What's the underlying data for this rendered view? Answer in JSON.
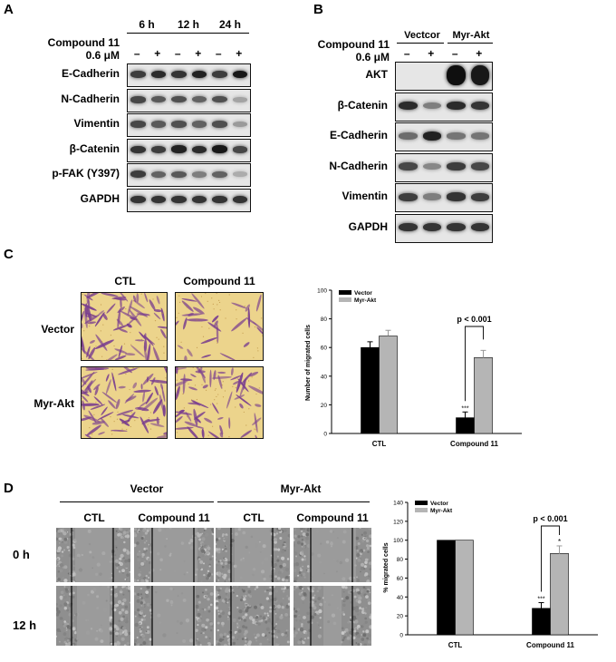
{
  "panel_a": {
    "letter": "A",
    "timepoints": [
      "6 h",
      "12 h",
      "24 h"
    ],
    "treatment_label": "Compound 11",
    "dose_label": "0.6 μM",
    "lane_signs": [
      "–",
      "+",
      "–",
      "+",
      "–",
      "+"
    ],
    "proteins": [
      {
        "name": "E-Cadherin",
        "intensity": [
          0.75,
          0.85,
          0.8,
          0.9,
          0.75,
          0.95
        ]
      },
      {
        "name": "N-Cadherin",
        "intensity": [
          0.7,
          0.6,
          0.65,
          0.55,
          0.65,
          0.2
        ]
      },
      {
        "name": "Vimentin",
        "intensity": [
          0.7,
          0.6,
          0.65,
          0.55,
          0.65,
          0.25
        ]
      },
      {
        "name": "β-Catenin",
        "intensity": [
          0.8,
          0.75,
          0.9,
          0.85,
          0.95,
          0.7
        ]
      },
      {
        "name": "p-FAK (Y397)",
        "intensity": [
          0.75,
          0.55,
          0.6,
          0.4,
          0.55,
          0.15
        ]
      },
      {
        "name": "GAPDH",
        "intensity": [
          0.8,
          0.8,
          0.8,
          0.8,
          0.8,
          0.8
        ]
      }
    ]
  },
  "panel_b": {
    "letter": "B",
    "groups": [
      "Vectcor",
      "Myr-Akt"
    ],
    "treatment_label": "Compound 11",
    "dose_label": "0.6 μM",
    "lane_signs": [
      "–",
      "+",
      "–",
      "+"
    ],
    "proteins": [
      {
        "name": "AKT",
        "intensity": [
          0.0,
          0.0,
          1.0,
          0.95
        ]
      },
      {
        "name": "β-Catenin",
        "intensity": [
          0.85,
          0.4,
          0.85,
          0.8
        ]
      },
      {
        "name": "E-Cadherin",
        "intensity": [
          0.5,
          0.9,
          0.45,
          0.45
        ]
      },
      {
        "name": "N-Cadherin",
        "intensity": [
          0.7,
          0.35,
          0.75,
          0.7
        ]
      },
      {
        "name": "Vimentin",
        "intensity": [
          0.75,
          0.4,
          0.8,
          0.75
        ]
      },
      {
        "name": "GAPDH",
        "intensity": [
          0.8,
          0.8,
          0.8,
          0.8
        ]
      }
    ]
  },
  "panel_c": {
    "letter": "C",
    "columns": [
      "CTL",
      "Compound 11"
    ],
    "rows": [
      "Vector",
      "Myr-Akt"
    ],
    "micro_colors": {
      "bg": "#ecd48c",
      "stain": "#7a3f8f"
    }
  },
  "panel_d": {
    "letter": "D",
    "groups": [
      "Vector",
      "Myr-Akt"
    ],
    "columns": [
      "CTL",
      "Compound 11",
      "CTL",
      "Compound 11"
    ],
    "rows": [
      "0 h",
      "12 h"
    ]
  },
  "chart_data": [
    {
      "type": "bar",
      "categories": [
        "CTL",
        "Compound 11"
      ],
      "series": [
        {
          "name": "Vector",
          "values": [
            60,
            11
          ],
          "errors": [
            4,
            4
          ],
          "color": "#000000"
        },
        {
          "name": "Myr-Akt",
          "values": [
            68,
            53
          ],
          "errors": [
            4,
            5
          ],
          "color": "#b5b5b5"
        }
      ],
      "ylabel": "Number of migrated cells",
      "ylim": [
        0,
        100
      ],
      "yticks": [
        0,
        20,
        40,
        60,
        80,
        100
      ],
      "annotations": {
        "significance": "p < 0.001",
        "stars": "***"
      },
      "legend": "top-left"
    },
    {
      "type": "bar",
      "categories": [
        "CTL",
        "Compound 11"
      ],
      "series": [
        {
          "name": "Vector",
          "values": [
            100,
            28
          ],
          "errors": [
            0,
            6
          ],
          "color": "#000000"
        },
        {
          "name": "Myr-Akt",
          "values": [
            100,
            86
          ],
          "errors": [
            0,
            8
          ],
          "color": "#b5b5b5"
        }
      ],
      "ylabel": "% migrated cells",
      "ylim": [
        0,
        140
      ],
      "yticks": [
        0,
        20,
        40,
        60,
        80,
        100,
        120,
        140
      ],
      "annotations": {
        "significance": "p < 0.001",
        "stars": "***",
        "star_single": "*"
      },
      "legend": "top-left"
    }
  ]
}
